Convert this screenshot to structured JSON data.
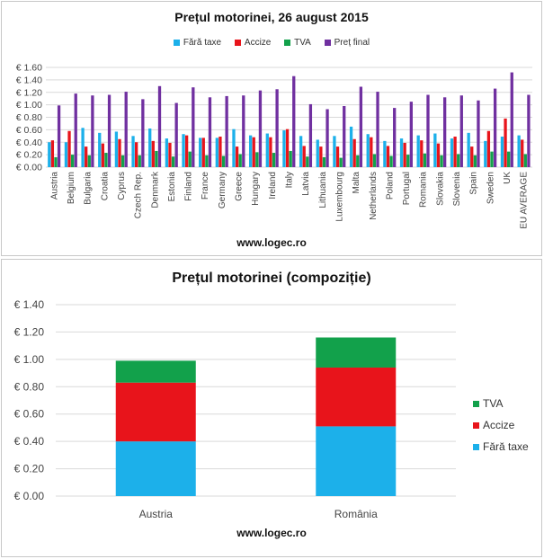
{
  "colors": {
    "fara_taxe": "#1cb0ea",
    "accize": "#e8141b",
    "tva": "#12a14b",
    "pret_final": "#7030a0",
    "grid": "#d9d9d9",
    "axis_text": "#444444"
  },
  "chart_data": [
    {
      "type": "bar",
      "title": "Prețul motorinei, 26 august 2015",
      "legend_position": "top",
      "grid": true,
      "ylim": [
        0,
        1.6
      ],
      "yticks": [
        "€ 0.00",
        "€ 0.20",
        "€ 0.40",
        "€ 0.60",
        "€ 0.80",
        "€ 1.00",
        "€ 1.20",
        "€ 1.40",
        "€ 1.60"
      ],
      "categories": [
        "Austria",
        "Belgium",
        "Bulgaria",
        "Croatia",
        "Cyprus",
        "Czech Rep.",
        "Denmark",
        "Estonia",
        "Finland",
        "France",
        "Germany",
        "Greece",
        "Hungary",
        "Ireland",
        "Italy",
        "Latvia",
        "Lithuania",
        "Luxembourg",
        "Malta",
        "Netherlands",
        "Poland",
        "Portugal",
        "Romania",
        "Slovakia",
        "Slovenia",
        "Spain",
        "Sweden",
        "UK",
        "EU AVERAGE"
      ],
      "series": [
        {
          "name": "Fără taxe",
          "values": [
            0.4,
            0.4,
            0.63,
            0.55,
            0.57,
            0.5,
            0.62,
            0.46,
            0.53,
            0.47,
            0.47,
            0.61,
            0.51,
            0.54,
            0.59,
            0.5,
            0.44,
            0.5,
            0.65,
            0.53,
            0.42,
            0.46,
            0.51,
            0.54,
            0.46,
            0.55,
            0.42,
            0.49,
            0.51
          ]
        },
        {
          "name": "Accize",
          "values": [
            0.43,
            0.58,
            0.33,
            0.38,
            0.45,
            0.4,
            0.42,
            0.39,
            0.51,
            0.47,
            0.49,
            0.33,
            0.48,
            0.48,
            0.61,
            0.34,
            0.33,
            0.33,
            0.45,
            0.48,
            0.34,
            0.39,
            0.43,
            0.38,
            0.49,
            0.33,
            0.58,
            0.78,
            0.44
          ]
        },
        {
          "name": "TVA",
          "values": [
            0.16,
            0.2,
            0.19,
            0.23,
            0.19,
            0.19,
            0.26,
            0.17,
            0.25,
            0.19,
            0.18,
            0.21,
            0.24,
            0.23,
            0.26,
            0.17,
            0.16,
            0.15,
            0.19,
            0.21,
            0.18,
            0.2,
            0.22,
            0.19,
            0.21,
            0.19,
            0.25,
            0.25,
            0.21
          ]
        },
        {
          "name": "Preț final",
          "values": [
            0.99,
            1.18,
            1.15,
            1.16,
            1.21,
            1.09,
            1.3,
            1.03,
            1.28,
            1.12,
            1.14,
            1.15,
            1.23,
            1.25,
            1.46,
            1.01,
            0.93,
            0.98,
            1.29,
            1.21,
            0.95,
            1.05,
            1.16,
            1.12,
            1.15,
            1.07,
            1.26,
            1.52,
            1.16
          ]
        }
      ]
    },
    {
      "type": "bar",
      "stacked": true,
      "title": "Prețul motorinei (compoziție)",
      "legend_position": "right",
      "grid": true,
      "ylim": [
        0,
        1.4
      ],
      "yticks": [
        "€ 0.00",
        "€ 0.20",
        "€ 0.40",
        "€ 0.60",
        "€ 0.80",
        "€ 1.00",
        "€ 1.20",
        "€ 1.40"
      ],
      "categories": [
        "Austria",
        "România"
      ],
      "series": [
        {
          "name": "Fără taxe",
          "values": [
            0.4,
            0.51
          ]
        },
        {
          "name": "Accize",
          "values": [
            0.43,
            0.43
          ]
        },
        {
          "name": "TVA",
          "values": [
            0.16,
            0.22
          ]
        }
      ],
      "legend_order": [
        "TVA",
        "Accize",
        "Fără taxe"
      ]
    }
  ],
  "footer": {
    "top": "www.logec.ro",
    "bottom": "www.logec.ro"
  }
}
